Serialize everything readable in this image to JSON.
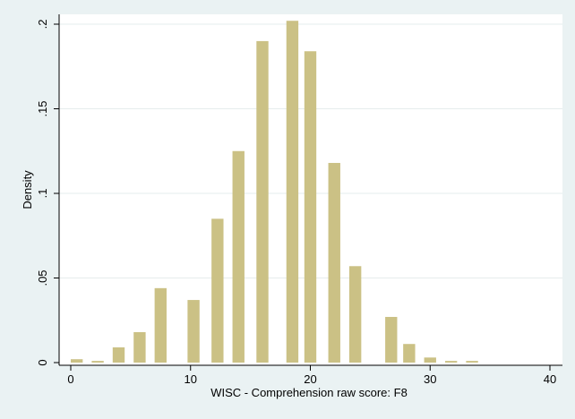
{
  "chart_data": {
    "type": "bar",
    "xlabel": "WISC - Comprehension raw score: F8",
    "ylabel": "Density",
    "xlim": [
      0,
      40
    ],
    "ylim": [
      0,
      0.2
    ],
    "grid": true,
    "x_ticks": [
      {
        "value": 0,
        "label": "0"
      },
      {
        "value": 10,
        "label": "10"
      },
      {
        "value": 20,
        "label": "20"
      },
      {
        "value": 30,
        "label": "30"
      },
      {
        "value": 40,
        "label": "40"
      }
    ],
    "y_ticks": [
      {
        "value": 0,
        "label": "0"
      },
      {
        "value": 0.05,
        "label": ".05"
      },
      {
        "value": 0.1,
        "label": ".1"
      },
      {
        "value": 0.15,
        "label": ".15"
      },
      {
        "value": 0.2,
        "label": ".2"
      }
    ],
    "bar_color": "#cbc185",
    "x": [
      0.5,
      2.25,
      4,
      5.75,
      7.5,
      10.25,
      12.25,
      14,
      16,
      18.5,
      20,
      22,
      23.75,
      26.75,
      28.25,
      30,
      31.75,
      33.5
    ],
    "values": [
      0.002,
      0.001,
      0.009,
      0.018,
      0.044,
      0.037,
      0.085,
      0.125,
      0.19,
      0.202,
      0.184,
      0.118,
      0.057,
      0.027,
      0.011,
      0.003,
      0.001,
      0.001
    ]
  }
}
